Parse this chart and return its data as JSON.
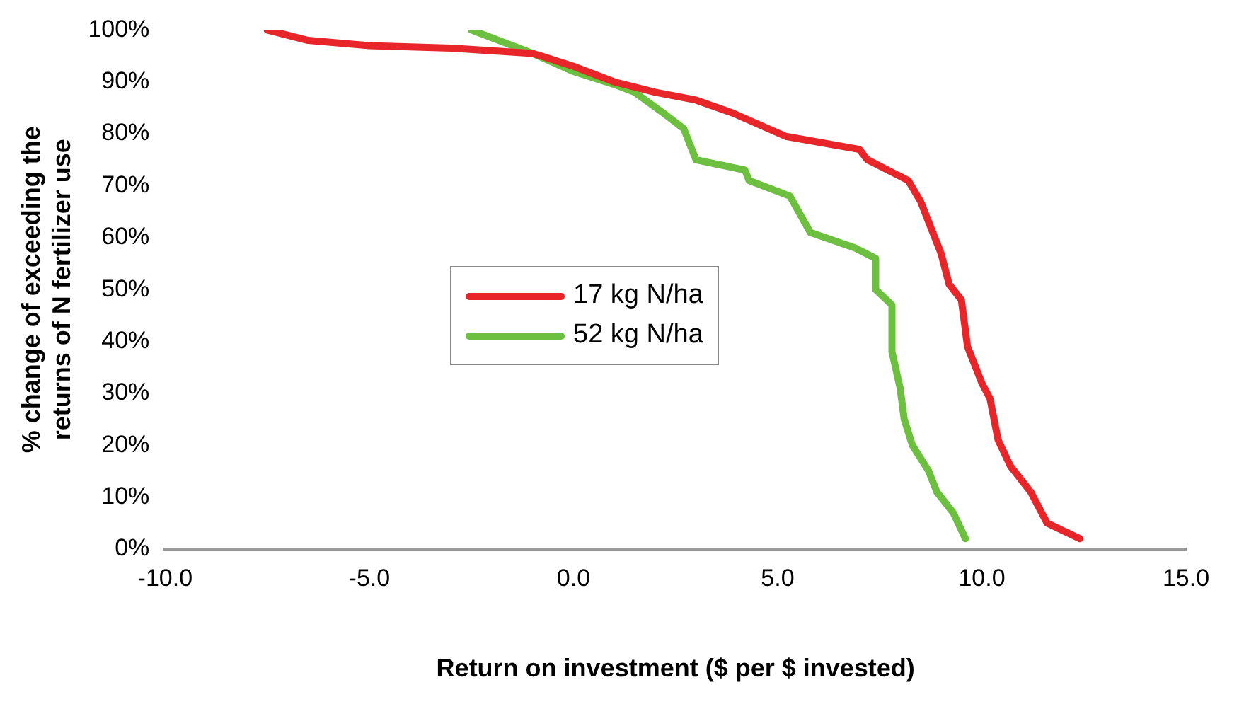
{
  "chart_data": {
    "type": "line",
    "xlabel": "Return on investment ($ per $ invested)",
    "ylabel": "% change of exceeding the returns of N fertilizer use",
    "xlim": [
      -10,
      15
    ],
    "xticks": [
      {
        "value": -10,
        "label": "-10.0"
      },
      {
        "value": -5,
        "label": "-5.0"
      },
      {
        "value": 0,
        "label": "0.0"
      },
      {
        "value": 5,
        "label": "5.0"
      },
      {
        "value": 10,
        "label": "10.0"
      },
      {
        "value": 15,
        "label": "15.0"
      }
    ],
    "ylim": [
      0,
      100
    ],
    "yticks": [
      {
        "value": 0,
        "label": "0%"
      },
      {
        "value": 10,
        "label": "10%"
      },
      {
        "value": 20,
        "label": "20%"
      },
      {
        "value": 30,
        "label": "30%"
      },
      {
        "value": 40,
        "label": "40%"
      },
      {
        "value": 50,
        "label": "50%"
      },
      {
        "value": 60,
        "label": "60%"
      },
      {
        "value": 70,
        "label": "70%"
      },
      {
        "value": 80,
        "label": "80%"
      },
      {
        "value": 90,
        "label": "90%"
      },
      {
        "value": 100,
        "label": "100%"
      }
    ],
    "grid": false,
    "legend": "center",
    "marker": "none",
    "line_style": "solid",
    "series": [
      {
        "name": "17 kg N/ha",
        "color": "#e8262a",
        "x": [
          -7.5,
          -6.5,
          -5,
          -3,
          -1,
          0,
          1,
          2,
          3,
          3.9,
          5.2,
          7.0,
          7.2,
          8.2,
          8.5,
          8.7,
          9.0,
          9.2,
          9.5,
          9.65,
          10.0,
          10.2,
          10.4,
          10.7,
          11.2,
          11.6,
          12.4
        ],
        "values": [
          100,
          98,
          97,
          96.5,
          95.5,
          93,
          90,
          88,
          86.5,
          84,
          79.5,
          77,
          75,
          71,
          67,
          63,
          57,
          51,
          48,
          39,
          32,
          29,
          21,
          16,
          11,
          5,
          2
        ]
      },
      {
        "name": "52 kg N/ha",
        "color": "#6cbf3f",
        "x": [
          -2.5,
          -1.5,
          -1,
          0,
          1,
          1.5,
          2.2,
          2.7,
          3.0,
          4.2,
          4.3,
          5.3,
          5.8,
          6.9,
          7.4,
          7.4,
          7.8,
          7.8,
          8.0,
          8.1,
          8.3,
          8.7,
          8.9,
          9.3,
          9.6
        ],
        "values": [
          100,
          97,
          95.5,
          92,
          89.5,
          88,
          84,
          81,
          75,
          73,
          71,
          68,
          61,
          58,
          56,
          50,
          47,
          38,
          31,
          25,
          20,
          15,
          11,
          7,
          2
        ]
      }
    ]
  }
}
